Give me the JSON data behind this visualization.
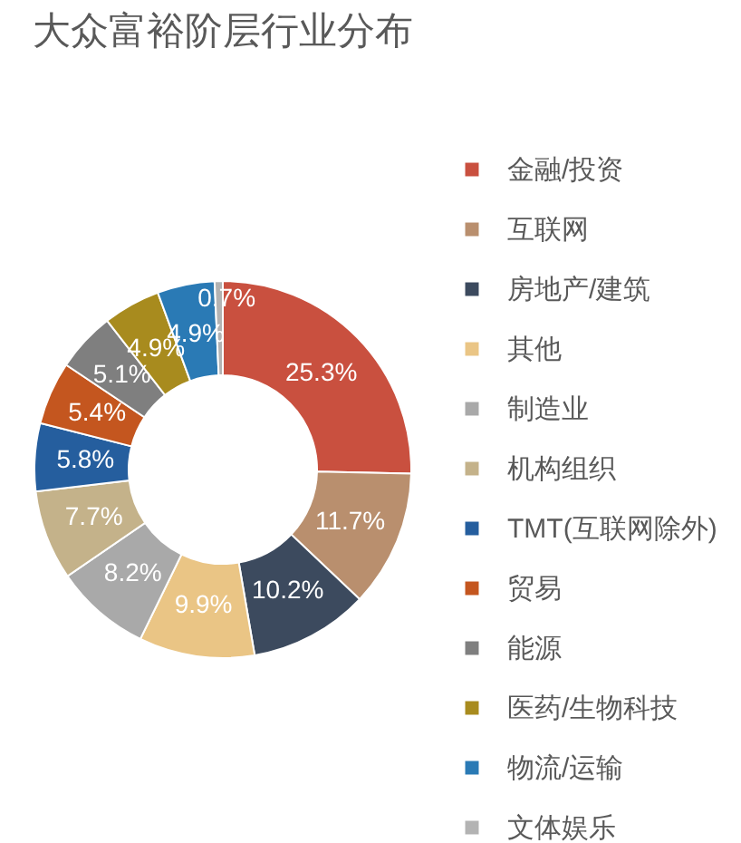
{
  "chart_data": {
    "type": "donut",
    "title": "大众富裕阶层行业分布",
    "categories": [
      "金融/投资",
      "互联网",
      "房地产/建筑",
      "其他",
      "制造业",
      "机构组织",
      "TMT(互联网除外)",
      "贸易",
      "能源",
      "医药/生物科技",
      "物流/运输",
      "文体娱乐"
    ],
    "values": [
      25.3,
      11.7,
      10.2,
      9.9,
      8.2,
      7.7,
      5.8,
      5.4,
      5.1,
      4.9,
      4.9,
      0.7
    ],
    "colors": [
      "#c9503f",
      "#b98f6e",
      "#3c4a5e",
      "#eac585",
      "#a9a9a9",
      "#c4b28a",
      "#255e9e",
      "#c4561f",
      "#7f7f7f",
      "#a88b1e",
      "#2a7ab5",
      "#b3b3b3"
    ],
    "value_labels": [
      "25.3%",
      "11.7%",
      "10.2%",
      "9.9%",
      "8.2%",
      "7.7%",
      "5.8%",
      "5.4%",
      "5.1%",
      "4.9%",
      "4.9%",
      "0.7%"
    ],
    "legend": "right"
  }
}
